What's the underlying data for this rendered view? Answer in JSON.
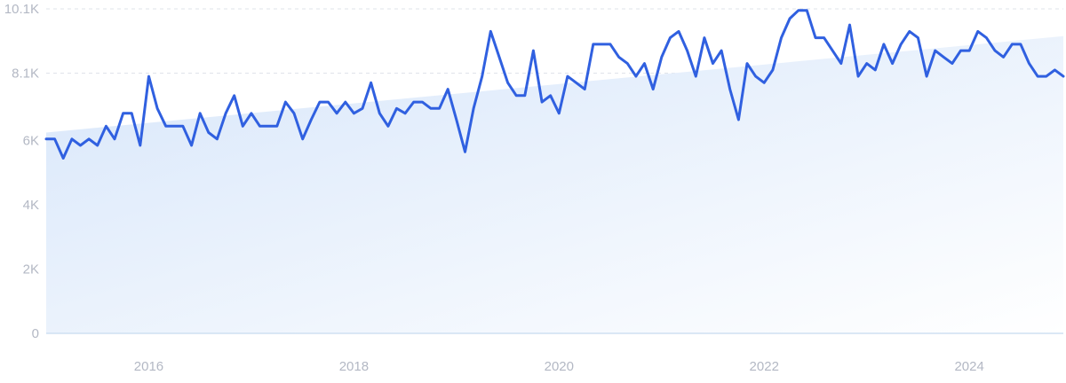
{
  "chart_data": {
    "type": "line",
    "title": "",
    "xlabel": "",
    "ylabel": "",
    "xlim": [
      "2015-01",
      "2024-12"
    ],
    "ylim": [
      0,
      10100
    ],
    "y_ticks": [
      {
        "value": 0,
        "label": "0"
      },
      {
        "value": 2000,
        "label": "2K"
      },
      {
        "value": 4000,
        "label": "4K"
      },
      {
        "value": 6000,
        "label": "6K"
      },
      {
        "value": 8100,
        "label": "8.1K"
      },
      {
        "value": 10100,
        "label": "10.1K"
      }
    ],
    "x_ticks": [
      {
        "value": "2016-01",
        "label": "2016"
      },
      {
        "value": "2018-01",
        "label": "2018"
      },
      {
        "value": "2020-01",
        "label": "2020"
      },
      {
        "value": "2022-01",
        "label": "2022"
      },
      {
        "value": "2024-01",
        "label": "2024"
      }
    ],
    "grid": true,
    "line_color": "#3060e0",
    "area_color": "#dce9fb",
    "trend": {
      "start": {
        "x": "2015-01",
        "y": 6250
      },
      "end": {
        "x": "2024-12",
        "y": 9250
      }
    },
    "series": [
      {
        "points": [
          [
            "2015-01",
            6050
          ],
          [
            "2015-02",
            6050
          ],
          [
            "2015-03",
            5450
          ],
          [
            "2015-04",
            6050
          ],
          [
            "2015-05",
            5850
          ],
          [
            "2015-06",
            6050
          ],
          [
            "2015-07",
            5850
          ],
          [
            "2015-08",
            6450
          ],
          [
            "2015-09",
            6050
          ],
          [
            "2015-10",
            6850
          ],
          [
            "2015-11",
            6850
          ],
          [
            "2015-12",
            5850
          ],
          [
            "2016-01",
            8000
          ],
          [
            "2016-02",
            7000
          ],
          [
            "2016-03",
            6450
          ],
          [
            "2016-04",
            6450
          ],
          [
            "2016-05",
            6450
          ],
          [
            "2016-06",
            5850
          ],
          [
            "2016-07",
            6850
          ],
          [
            "2016-08",
            6250
          ],
          [
            "2016-09",
            6050
          ],
          [
            "2016-10",
            6850
          ],
          [
            "2016-11",
            7400
          ],
          [
            "2016-12",
            6450
          ],
          [
            "2017-01",
            6850
          ],
          [
            "2017-02",
            6450
          ],
          [
            "2017-03",
            6450
          ],
          [
            "2017-04",
            6450
          ],
          [
            "2017-05",
            7200
          ],
          [
            "2017-06",
            6850
          ],
          [
            "2017-07",
            6050
          ],
          [
            "2017-08",
            6650
          ],
          [
            "2017-09",
            7200
          ],
          [
            "2017-10",
            7200
          ],
          [
            "2017-11",
            6850
          ],
          [
            "2017-12",
            7200
          ],
          [
            "2018-01",
            6850
          ],
          [
            "2018-02",
            7000
          ],
          [
            "2018-03",
            7800
          ],
          [
            "2018-04",
            6850
          ],
          [
            "2018-05",
            6450
          ],
          [
            "2018-06",
            7000
          ],
          [
            "2018-07",
            6850
          ],
          [
            "2018-08",
            7200
          ],
          [
            "2018-09",
            7200
          ],
          [
            "2018-10",
            7000
          ],
          [
            "2018-11",
            7000
          ],
          [
            "2018-12",
            7600
          ],
          [
            "2019-01",
            6650
          ],
          [
            "2019-02",
            5650
          ],
          [
            "2019-03",
            7000
          ],
          [
            "2019-04",
            8000
          ],
          [
            "2019-05",
            9400
          ],
          [
            "2019-06",
            8600
          ],
          [
            "2019-07",
            7800
          ],
          [
            "2019-08",
            7400
          ],
          [
            "2019-09",
            7400
          ],
          [
            "2019-10",
            8800
          ],
          [
            "2019-11",
            7200
          ],
          [
            "2019-12",
            7400
          ],
          [
            "2020-01",
            6850
          ],
          [
            "2020-02",
            8000
          ],
          [
            "2020-03",
            7800
          ],
          [
            "2020-04",
            7600
          ],
          [
            "2020-05",
            9000
          ],
          [
            "2020-06",
            9000
          ],
          [
            "2020-07",
            9000
          ],
          [
            "2020-08",
            8600
          ],
          [
            "2020-09",
            8400
          ],
          [
            "2020-10",
            8000
          ],
          [
            "2020-11",
            8400
          ],
          [
            "2020-12",
            7600
          ],
          [
            "2021-01",
            8600
          ],
          [
            "2021-02",
            9200
          ],
          [
            "2021-03",
            9400
          ],
          [
            "2021-04",
            8800
          ],
          [
            "2021-05",
            8000
          ],
          [
            "2021-06",
            9200
          ],
          [
            "2021-07",
            8400
          ],
          [
            "2021-08",
            8800
          ],
          [
            "2021-09",
            7600
          ],
          [
            "2021-10",
            6650
          ],
          [
            "2021-11",
            8400
          ],
          [
            "2021-12",
            8000
          ],
          [
            "2022-01",
            7800
          ],
          [
            "2022-02",
            8200
          ],
          [
            "2022-03",
            9200
          ],
          [
            "2022-04",
            9800
          ],
          [
            "2022-05",
            10050
          ],
          [
            "2022-06",
            10050
          ],
          [
            "2022-07",
            9200
          ],
          [
            "2022-08",
            9200
          ],
          [
            "2022-09",
            8800
          ],
          [
            "2022-10",
            8400
          ],
          [
            "2022-11",
            9600
          ],
          [
            "2022-12",
            8000
          ],
          [
            "2023-01",
            8400
          ],
          [
            "2023-02",
            8200
          ],
          [
            "2023-03",
            9000
          ],
          [
            "2023-04",
            8400
          ],
          [
            "2023-05",
            9000
          ],
          [
            "2023-06",
            9400
          ],
          [
            "2023-07",
            9200
          ],
          [
            "2023-08",
            8000
          ],
          [
            "2023-09",
            8800
          ],
          [
            "2023-10",
            8600
          ],
          [
            "2023-11",
            8400
          ],
          [
            "2023-12",
            8800
          ],
          [
            "2024-01",
            8800
          ],
          [
            "2024-02",
            9400
          ],
          [
            "2024-03",
            9200
          ],
          [
            "2024-04",
            8800
          ],
          [
            "2024-05",
            8600
          ],
          [
            "2024-06",
            9000
          ],
          [
            "2024-07",
            9000
          ],
          [
            "2024-08",
            8400
          ],
          [
            "2024-09",
            8000
          ],
          [
            "2024-10",
            8000
          ],
          [
            "2024-11",
            8200
          ],
          [
            "2024-12",
            8000
          ]
        ]
      }
    ]
  }
}
